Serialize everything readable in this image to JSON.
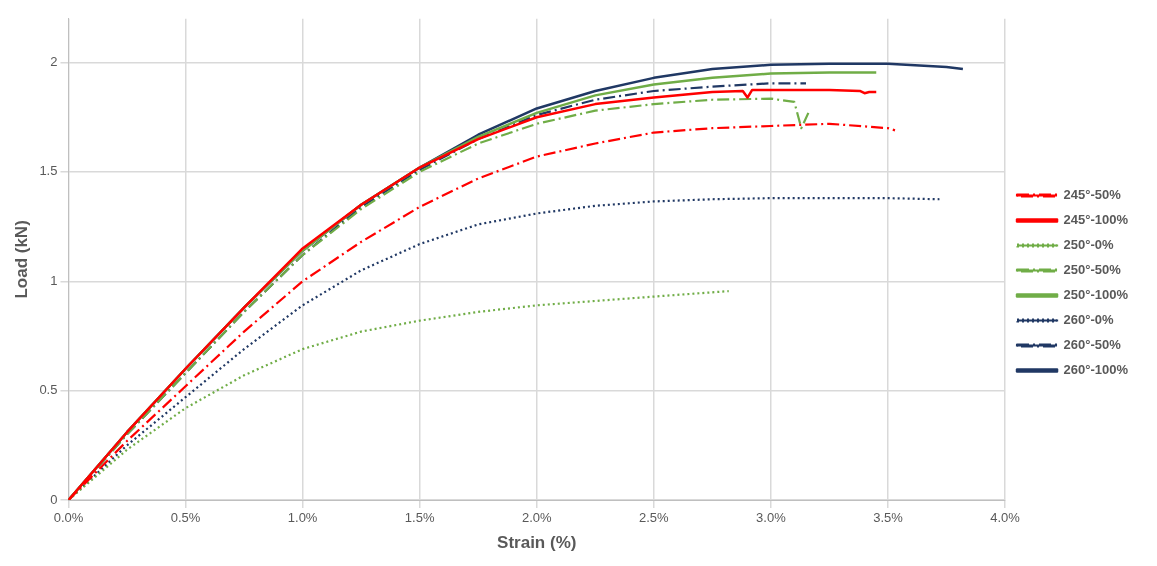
{
  "chart_data": {
    "type": "line",
    "xlabel": "Strain (%)",
    "ylabel": "Load (kN)",
    "xlim": [
      0,
      4
    ],
    "ylim": [
      0,
      2.2
    ],
    "xticks": [
      {
        "value": 0,
        "label": "0.0%"
      },
      {
        "value": 0.5,
        "label": "0.5%"
      },
      {
        "value": 1,
        "label": "1.0%"
      },
      {
        "value": 1.5,
        "label": "1.5%"
      },
      {
        "value": 2,
        "label": "2.0%"
      },
      {
        "value": 2.5,
        "label": "2.5%"
      },
      {
        "value": 3,
        "label": "3.0%"
      },
      {
        "value": 3.5,
        "label": "3.5%"
      },
      {
        "value": 4,
        "label": "4.0%"
      }
    ],
    "yticks": [
      0,
      0.5,
      1,
      1.5,
      2
    ],
    "grid": true,
    "legend": "right",
    "marker": "none",
    "series": [
      {
        "name": "245°-50%",
        "color": "#ff0000",
        "line_style": "dashdot",
        "x": [
          0,
          0.25,
          0.5,
          0.75,
          1,
          1.25,
          1.5,
          1.75,
          2,
          2.25,
          2.5,
          2.75,
          3,
          3.25,
          3.5,
          3.53
        ],
        "values": [
          0,
          0.27,
          0.52,
          0.77,
          1.0,
          1.18,
          1.34,
          1.47,
          1.57,
          1.63,
          1.68,
          1.7,
          1.71,
          1.72,
          1.7,
          1.69
        ]
      },
      {
        "name": "245°-100%",
        "color": "#ff0000",
        "line_style": "solid",
        "x": [
          0,
          0.25,
          0.5,
          0.75,
          1,
          1.25,
          1.5,
          1.75,
          2,
          2.25,
          2.5,
          2.75,
          2.88,
          2.9,
          2.92,
          3,
          3.25,
          3.38,
          3.4,
          3.42,
          3.45
        ],
        "values": [
          0,
          0.31,
          0.6,
          0.88,
          1.15,
          1.35,
          1.52,
          1.65,
          1.75,
          1.81,
          1.84,
          1.865,
          1.87,
          1.84,
          1.875,
          1.875,
          1.875,
          1.87,
          1.86,
          1.865,
          1.865
        ]
      },
      {
        "name": "250°-0%",
        "color": "#70ad47",
        "line_style": "dotted",
        "x": [
          0,
          0.25,
          0.5,
          0.75,
          1,
          1.25,
          1.5,
          1.75,
          2,
          2.25,
          2.5,
          2.82
        ],
        "values": [
          0,
          0.23,
          0.42,
          0.57,
          0.69,
          0.77,
          0.82,
          0.86,
          0.89,
          0.91,
          0.93,
          0.955
        ]
      },
      {
        "name": "250°-50%",
        "color": "#70ad47",
        "line_style": "dashdot",
        "x": [
          0,
          0.25,
          0.5,
          0.75,
          1,
          1.25,
          1.5,
          1.75,
          2,
          2.25,
          2.5,
          2.75,
          3,
          3.1,
          3.13,
          3.16
        ],
        "values": [
          0,
          0.3,
          0.58,
          0.86,
          1.12,
          1.33,
          1.5,
          1.63,
          1.72,
          1.78,
          1.81,
          1.83,
          1.835,
          1.82,
          1.7,
          1.77
        ]
      },
      {
        "name": "250°-100%",
        "color": "#70ad47",
        "line_style": "solid",
        "x": [
          0,
          0.25,
          0.5,
          0.75,
          1,
          1.25,
          1.5,
          1.75,
          2,
          2.25,
          2.5,
          2.75,
          3,
          3.25,
          3.45
        ],
        "values": [
          0,
          0.31,
          0.6,
          0.88,
          1.14,
          1.35,
          1.52,
          1.66,
          1.77,
          1.85,
          1.9,
          1.93,
          1.95,
          1.955,
          1.955
        ]
      },
      {
        "name": "260°-0%",
        "color": "#203864",
        "line_style": "dotted",
        "x": [
          0,
          0.25,
          0.5,
          0.75,
          1,
          1.25,
          1.5,
          1.75,
          2,
          2.25,
          2.5,
          2.75,
          3,
          3.25,
          3.5,
          3.72
        ],
        "values": [
          0,
          0.25,
          0.47,
          0.69,
          0.89,
          1.05,
          1.17,
          1.26,
          1.31,
          1.345,
          1.365,
          1.375,
          1.38,
          1.38,
          1.38,
          1.375
        ]
      },
      {
        "name": "260°-50%",
        "color": "#203864",
        "line_style": "dashdot",
        "x": [
          0,
          0.25,
          0.5,
          0.75,
          1,
          1.25,
          1.5,
          1.75,
          2,
          2.25,
          2.5,
          2.75,
          3,
          3.15
        ],
        "values": [
          0,
          0.3,
          0.58,
          0.86,
          1.12,
          1.34,
          1.51,
          1.65,
          1.76,
          1.83,
          1.87,
          1.89,
          1.905,
          1.905
        ]
      },
      {
        "name": "260°-100%",
        "color": "#203864",
        "line_style": "solid",
        "x": [
          0,
          0.25,
          0.5,
          0.75,
          1,
          1.25,
          1.5,
          1.75,
          2,
          2.25,
          2.5,
          2.75,
          3,
          3.25,
          3.5,
          3.75,
          3.82
        ],
        "values": [
          0,
          0.31,
          0.6,
          0.88,
          1.14,
          1.35,
          1.52,
          1.67,
          1.79,
          1.87,
          1.93,
          1.97,
          1.99,
          1.995,
          1.995,
          1.98,
          1.97
        ]
      }
    ]
  }
}
